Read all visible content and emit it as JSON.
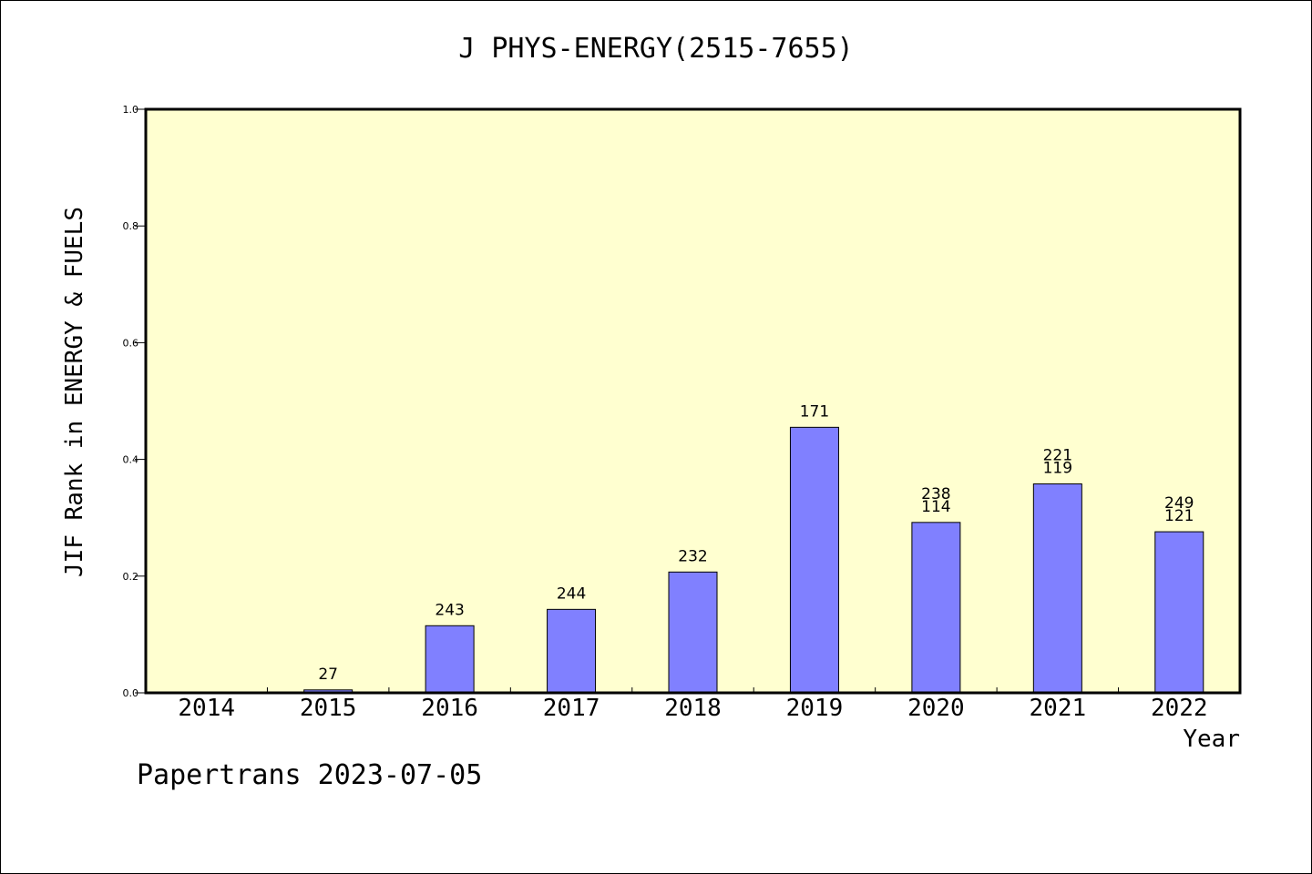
{
  "chart_data": {
    "type": "bar",
    "title": "J PHYS-ENERGY(2515-7655)",
    "xlabel": "Year",
    "ylabel": "JIF Rank in ENERGY & FUELS",
    "ylim": [
      0,
      1.0
    ],
    "yticks": [
      "0.0",
      "0.2",
      "0.4",
      "0.6",
      "0.8",
      "1.0"
    ],
    "categories": [
      "2014",
      "2015",
      "2016",
      "2017",
      "2018",
      "2019",
      "2020",
      "2021",
      "2022"
    ],
    "values": [
      null,
      0.005,
      0.115,
      0.143,
      0.207,
      0.455,
      0.292,
      0.358,
      0.276
    ],
    "bar_labels": [
      [],
      [
        "27"
      ],
      [
        "243"
      ],
      [
        "244"
      ],
      [
        "232"
      ],
      [
        "171"
      ],
      [
        "238",
        "114"
      ],
      [
        "221",
        "119"
      ],
      [
        "249",
        "121"
      ]
    ],
    "grid": false,
    "colors": {
      "plot_bg": "#ffffd0",
      "bar": "#8080ff",
      "bar_edge": "#000000"
    }
  },
  "footer": "Papertrans 2023-07-05"
}
